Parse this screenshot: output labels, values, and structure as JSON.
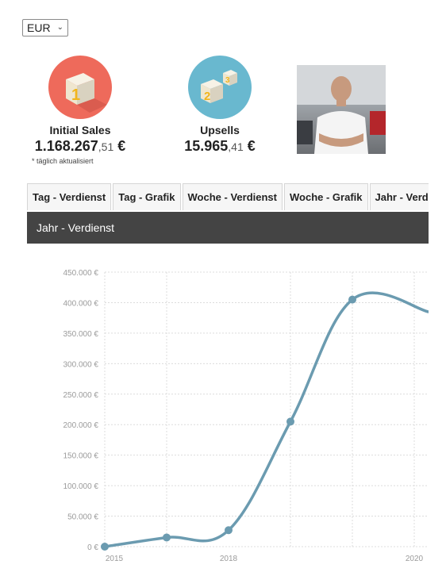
{
  "currency": {
    "selected": "EUR"
  },
  "stats": {
    "initial": {
      "label": "Initial Sales",
      "amount_main": "1.168.267",
      "amount_cents": ",51",
      "currency_symbol": "€",
      "badge_color": "#ee6a5b"
    },
    "upsell": {
      "label": "Upsells",
      "amount_main": "15.965",
      "amount_cents": ",41",
      "currency_symbol": "€",
      "badge_color": "#69b8cf"
    },
    "footnote": "* täglich aktualisiert"
  },
  "tabs": [
    "Tag - Verdienst",
    "Tag - Grafik",
    "Woche - Verdienst",
    "Woche - Grafik",
    "Jahr - Verdienst"
  ],
  "panel": {
    "title": "Jahr - Verdienst"
  },
  "colors": {
    "line": "#6b9bb0",
    "header_bg": "#444444"
  },
  "chart_data": {
    "type": "line",
    "x": [
      2015,
      2016,
      2018,
      2019,
      2020,
      2021
    ],
    "values": [
      0,
      15000,
      27000,
      205000,
      405000,
      385000
    ],
    "xticks": [
      "2015",
      "2018",
      "2020"
    ],
    "yticks": [
      "450.000 €",
      "400.000 €",
      "350.000 €",
      "300.000 €",
      "250.000 €",
      "200.000 €",
      "150.000 €",
      "100.000 €",
      "50.000 €",
      "0 €"
    ],
    "ylim": [
      0,
      450000
    ],
    "grid": true
  }
}
